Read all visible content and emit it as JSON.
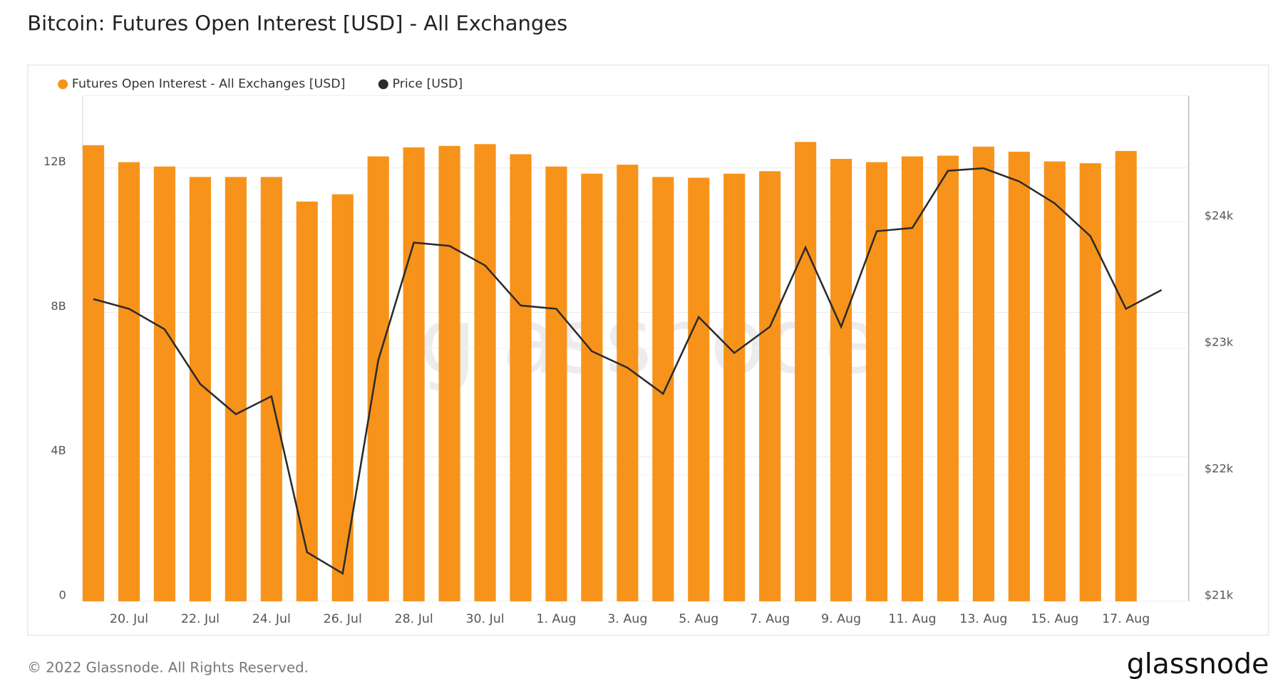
{
  "chart_data": {
    "type": "bar-line",
    "title": "Bitcoin: Futures Open Interest [USD] - All Exchanges",
    "watermark": "glassnode",
    "footer": "© 2022 Glassnode. All Rights Reserved.",
    "logo": "glassnode",
    "categories": [
      null,
      "20. Jul",
      null,
      "22. Jul",
      null,
      "24. Jul",
      null,
      "26. Jul",
      null,
      "28. Jul",
      null,
      "30. Jul",
      null,
      "1. Aug",
      null,
      "3. Aug",
      null,
      "5. Aug",
      null,
      "7. Aug",
      null,
      "9. Aug",
      null,
      "11. Aug",
      null,
      "13. Aug",
      null,
      "15. Aug",
      null,
      "17. Aug",
      null
    ],
    "series": [
      {
        "name": "Futures Open Interest - All Exchanges [USD]",
        "color": "#f7931a",
        "type": "bar",
        "values": [
          12630000000,
          12160000000,
          12040000000,
          11750000000,
          11750000000,
          11750000000,
          11070000000,
          11270000000,
          12320000000,
          12570000000,
          12610000000,
          12660000000,
          12380000000,
          12040000000,
          11840000000,
          12090000000,
          11750000000,
          11730000000,
          11840000000,
          11910000000,
          12720000000,
          12250000000,
          12160000000,
          12320000000,
          12340000000,
          12590000000,
          12450000000,
          12180000000,
          12130000000,
          12470000000,
          null
        ]
      },
      {
        "name": "Price [USD]",
        "color": "#2b2b2b",
        "type": "line",
        "axis": "y2",
        "values": [
          23391,
          23314,
          23152,
          22719,
          22480,
          22622,
          21388,
          21220,
          22907,
          23838,
          23812,
          23657,
          23340,
          23314,
          22978,
          22848,
          22642,
          23249,
          22965,
          23172,
          23799,
          23172,
          23928,
          23954,
          24406,
          24426,
          24322,
          24148,
          23889,
          23314,
          23463
        ]
      }
    ],
    "ylim": [
      0,
      14000000000
    ],
    "yticks": [
      {
        "value": 0,
        "label": "0"
      },
      {
        "value": 4000000000,
        "label": "4B"
      },
      {
        "value": 8000000000,
        "label": "8B"
      },
      {
        "value": 12000000000,
        "label": "12B"
      }
    ],
    "y2lim": [
      21000,
      25000
    ],
    "y2ticks": [
      {
        "value": 21000,
        "label": "$21k"
      },
      {
        "value": 22000,
        "label": "$22k"
      },
      {
        "value": 23000,
        "label": "$23k"
      },
      {
        "value": 24000,
        "label": "$24k"
      }
    ],
    "grid": true
  }
}
